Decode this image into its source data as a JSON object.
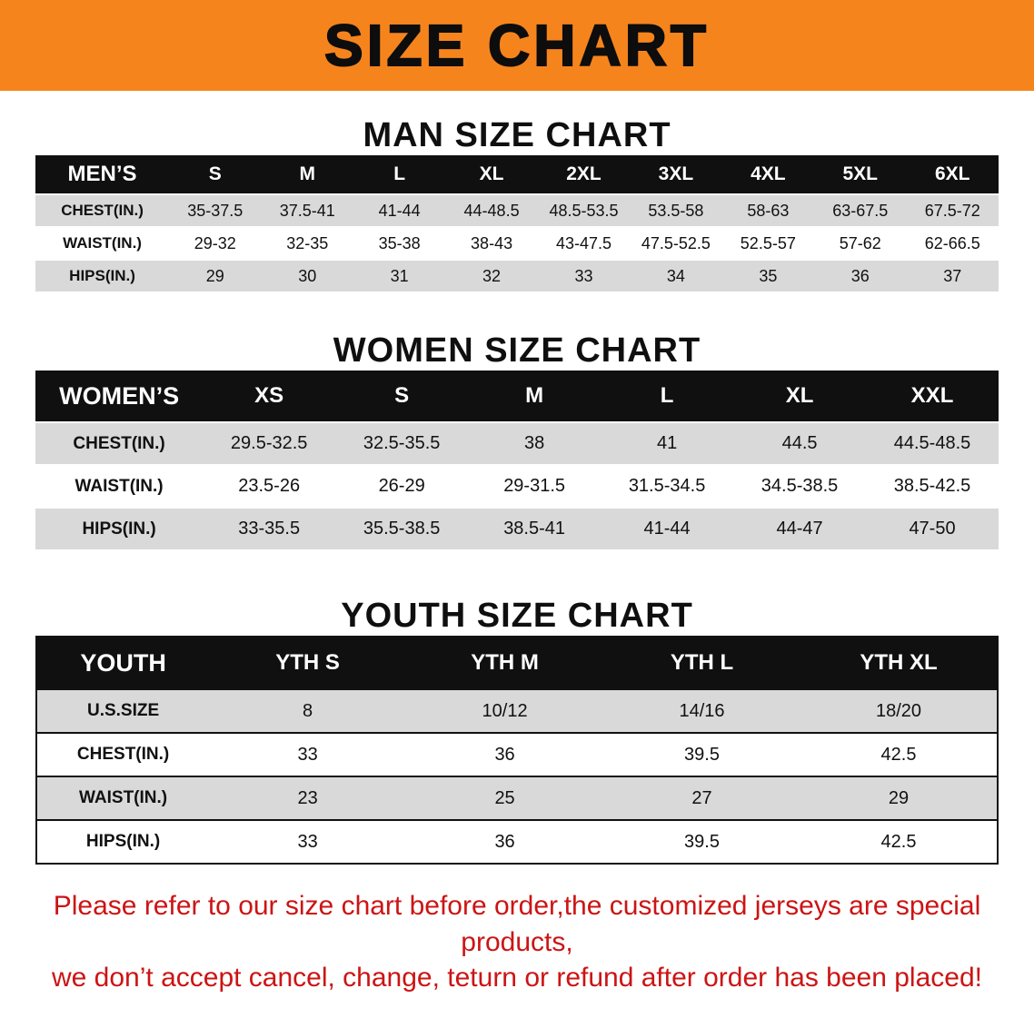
{
  "banner": {
    "title": "SIZE CHART",
    "bg_color": "#f6841d"
  },
  "men": {
    "section_title": "MAN SIZE CHART",
    "table": {
      "header": [
        "MEN’S",
        "S",
        "M",
        "L",
        "XL",
        "2XL",
        "3XL",
        "4XL",
        "5XL",
        "6XL"
      ],
      "rows": [
        [
          "CHEST(IN.)",
          "35-37.5",
          "37.5-41",
          "41-44",
          "44-48.5",
          "48.5-53.5",
          "53.5-58",
          "58-63",
          "63-67.5",
          "67.5-72"
        ],
        [
          "WAIST(IN.)",
          "29-32",
          "32-35",
          "35-38",
          "38-43",
          "43-47.5",
          "47.5-52.5",
          "52.5-57",
          "57-62",
          "62-66.5"
        ],
        [
          "HIPS(IN.)",
          "29",
          "30",
          "31",
          "32",
          "33",
          "34",
          "35",
          "36",
          "37"
        ]
      ]
    }
  },
  "women": {
    "section_title": "WOMEN SIZE CHART",
    "table": {
      "header": [
        "WOMEN’S",
        "XS",
        "S",
        "M",
        "L",
        "XL",
        "XXL"
      ],
      "rows": [
        [
          "CHEST(IN.)",
          "29.5-32.5",
          "32.5-35.5",
          "38",
          "41",
          "44.5",
          "44.5-48.5"
        ],
        [
          "WAIST(IN.)",
          "23.5-26",
          "26-29",
          "29-31.5",
          "31.5-34.5",
          "34.5-38.5",
          "38.5-42.5"
        ],
        [
          "HIPS(IN.)",
          "33-35.5",
          "35.5-38.5",
          "38.5-41",
          "41-44",
          "44-47",
          "47-50"
        ]
      ]
    }
  },
  "youth": {
    "section_title": "YOUTH SIZE CHART",
    "table": {
      "header": [
        "YOUTH",
        "YTH S",
        "YTH M",
        "YTH L",
        "YTH XL"
      ],
      "rows": [
        [
          "U.S.SIZE",
          "8",
          "10/12",
          "14/16",
          "18/20"
        ],
        [
          "CHEST(IN.)",
          "33",
          "36",
          "39.5",
          "42.5"
        ],
        [
          "WAIST(IN.)",
          "23",
          "25",
          "27",
          "29"
        ],
        [
          "HIPS(IN.)",
          "33",
          "36",
          "39.5",
          "42.5"
        ]
      ]
    }
  },
  "notice": {
    "line1": "Please refer to our size chart before order,the customized jerseys are special products,",
    "line2": "we don’t accept cancel, change, teturn or refund after order has been placed!",
    "color": "#cc1414"
  }
}
